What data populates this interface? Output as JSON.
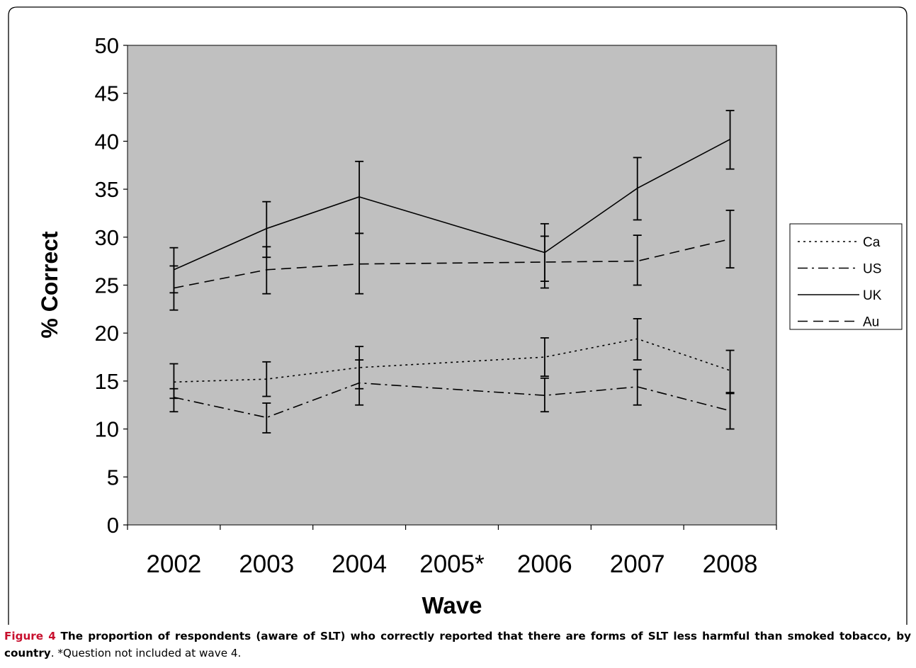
{
  "chart_data": {
    "type": "line",
    "xlabel": "Wave",
    "ylabel": "% Correct",
    "categories": [
      "2002",
      "2003",
      "2004",
      "2005*",
      "2006",
      "2007",
      "2008"
    ],
    "ylim": [
      0,
      50
    ],
    "yticks": [
      0,
      5,
      10,
      15,
      20,
      25,
      30,
      35,
      40,
      45,
      50
    ],
    "grid": false,
    "plot_background": "#c0c0c0",
    "legend_position": "right",
    "series": [
      {
        "name": "Ca",
        "dash": "dotted",
        "values": [
          14.9,
          15.2,
          16.4,
          null,
          17.5,
          19.4,
          16.1
        ],
        "err_low": [
          13.2,
          13.4,
          14.2,
          null,
          15.5,
          17.2,
          13.8
        ],
        "err_high": [
          16.8,
          17.0,
          18.6,
          null,
          19.5,
          21.5,
          18.2
        ]
      },
      {
        "name": "US",
        "dash": "dash-dot",
        "values": [
          13.3,
          11.2,
          14.8,
          null,
          13.5,
          14.4,
          11.9
        ],
        "err_low": [
          11.8,
          9.6,
          12.5,
          null,
          11.8,
          12.5,
          10.0
        ],
        "err_high": [
          14.2,
          12.7,
          17.2,
          null,
          15.3,
          16.2,
          13.7
        ]
      },
      {
        "name": "UK",
        "dash": "solid",
        "values": [
          26.6,
          30.9,
          34.2,
          null,
          28.4,
          35.1,
          40.2
        ],
        "err_low": [
          24.2,
          27.9,
          30.4,
          null,
          25.4,
          31.8,
          37.1
        ],
        "err_high": [
          28.9,
          33.7,
          37.9,
          null,
          31.4,
          38.3,
          43.2
        ]
      },
      {
        "name": "Au",
        "dash": "dashed",
        "values": [
          24.7,
          26.6,
          27.2,
          null,
          27.4,
          27.5,
          29.8
        ],
        "err_low": [
          22.4,
          24.1,
          24.1,
          null,
          24.7,
          25.0,
          26.8
        ],
        "err_high": [
          27.0,
          29.0,
          30.4,
          null,
          30.1,
          30.2,
          32.8
        ]
      }
    ]
  },
  "caption": {
    "title": "Figure 4",
    "bold_text": "The proportion of respondents (aware of SLT) who correctly reported that there are forms of SLT less harmful than smoked tobacco, by country",
    "note": ". *Question not included at wave 4."
  }
}
